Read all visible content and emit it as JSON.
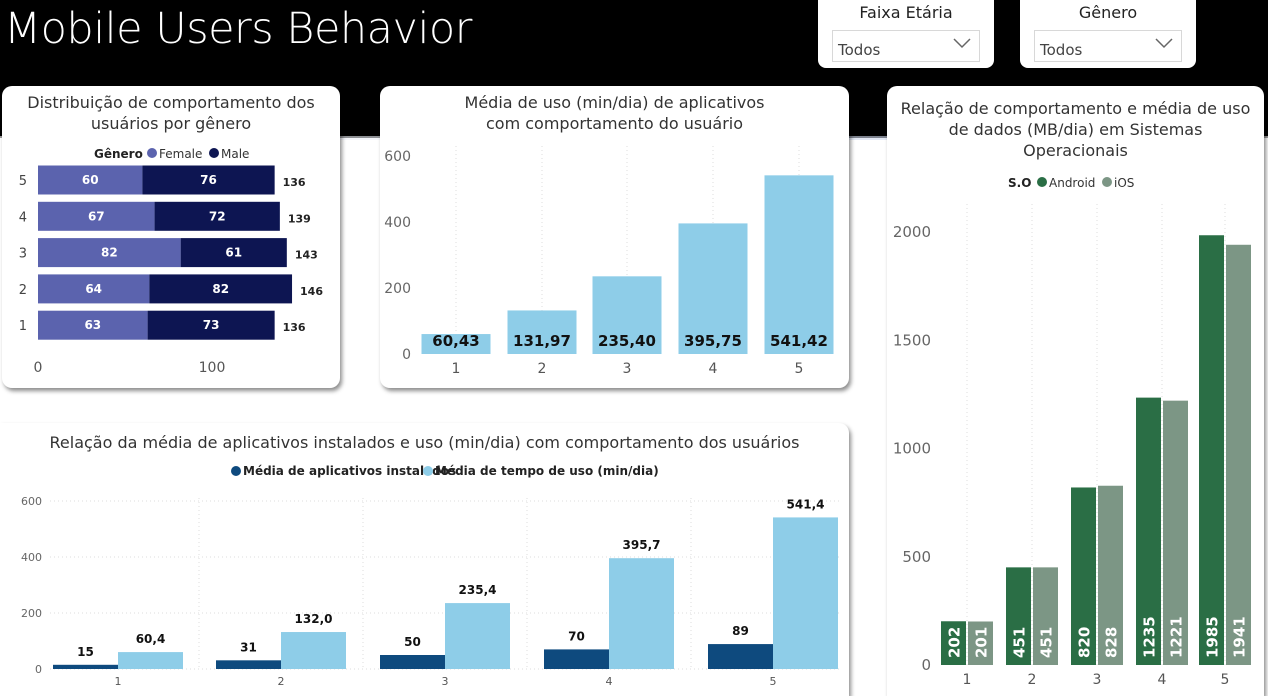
{
  "page": {
    "title": "Mobile Users Behavior"
  },
  "filters": [
    {
      "title": "Faixa Etária",
      "value": "Todos"
    },
    {
      "title": "Gênero",
      "value": "Todos"
    }
  ],
  "colors": {
    "female": "#5b63ae",
    "male": "#0d1552",
    "usage": "#8ecde8",
    "installed": "#0e4a7e",
    "android": "#2a6e45",
    "ios": "#7c9685"
  },
  "chart_data": [
    {
      "id": "gender",
      "type": "bar",
      "orientation": "horizontal",
      "stacked": true,
      "title": "Distribuição de comportamento dos usuários por gênero",
      "legend_title": "Gênero",
      "categories": [
        "1",
        "2",
        "3",
        "4",
        "5"
      ],
      "series": [
        {
          "name": "Female",
          "values": [
            63,
            64,
            82,
            67,
            60
          ]
        },
        {
          "name": "Male",
          "values": [
            73,
            82,
            61,
            72,
            76
          ]
        }
      ],
      "totals": [
        136,
        146,
        143,
        139,
        136
      ],
      "xticks": [
        "0",
        "100"
      ],
      "xlim": [
        0,
        160
      ]
    },
    {
      "id": "usage",
      "type": "bar",
      "title": "Média de uso (min/dia) de aplicativos com comportamento do usuário",
      "categories": [
        "1",
        "2",
        "3",
        "4",
        "5"
      ],
      "values": [
        60.43,
        131.97,
        235.4,
        395.75,
        541.42
      ],
      "value_labels": [
        "60,43",
        "131,97",
        "235,40",
        "395,75",
        "541,42"
      ],
      "yticks": [
        "0",
        "200",
        "400",
        "600"
      ],
      "ylim": [
        0,
        600
      ]
    },
    {
      "id": "apps",
      "type": "bar",
      "title": "Relação da média de aplicativos instalados e uso (min/dia) com comportamento dos usuários",
      "categories": [
        "1",
        "2",
        "3",
        "4",
        "5"
      ],
      "series": [
        {
          "name": "Média de aplicativos instalados",
          "values": [
            15,
            31,
            50,
            70,
            89
          ],
          "labels": [
            "15",
            "31",
            "50",
            "70",
            "89"
          ]
        },
        {
          "name": "Média de tempo de uso (min/dia)",
          "values": [
            60.4,
            132.0,
            235.4,
            395.7,
            541.4
          ],
          "labels": [
            "60,4",
            "132,0",
            "235,4",
            "395,7",
            "541,4"
          ]
        }
      ],
      "yticks": [
        "0",
        "200",
        "400",
        "600"
      ],
      "ylim": [
        0,
        600
      ]
    },
    {
      "id": "os",
      "type": "bar",
      "title": "Relação de comportamento e média de uso de dados (MB/dia) em Sistemas Operacionais",
      "legend_title": "S.O",
      "categories": [
        "1",
        "2",
        "3",
        "4",
        "5"
      ],
      "series": [
        {
          "name": "Android",
          "values": [
            202,
            451,
            820,
            1235,
            1985
          ]
        },
        {
          "name": "iOS",
          "values": [
            201,
            451,
            828,
            1221,
            1941
          ]
        }
      ],
      "yticks": [
        "0",
        "500",
        "1000",
        "1500",
        "2000"
      ],
      "ylim": [
        0,
        2000
      ]
    }
  ]
}
